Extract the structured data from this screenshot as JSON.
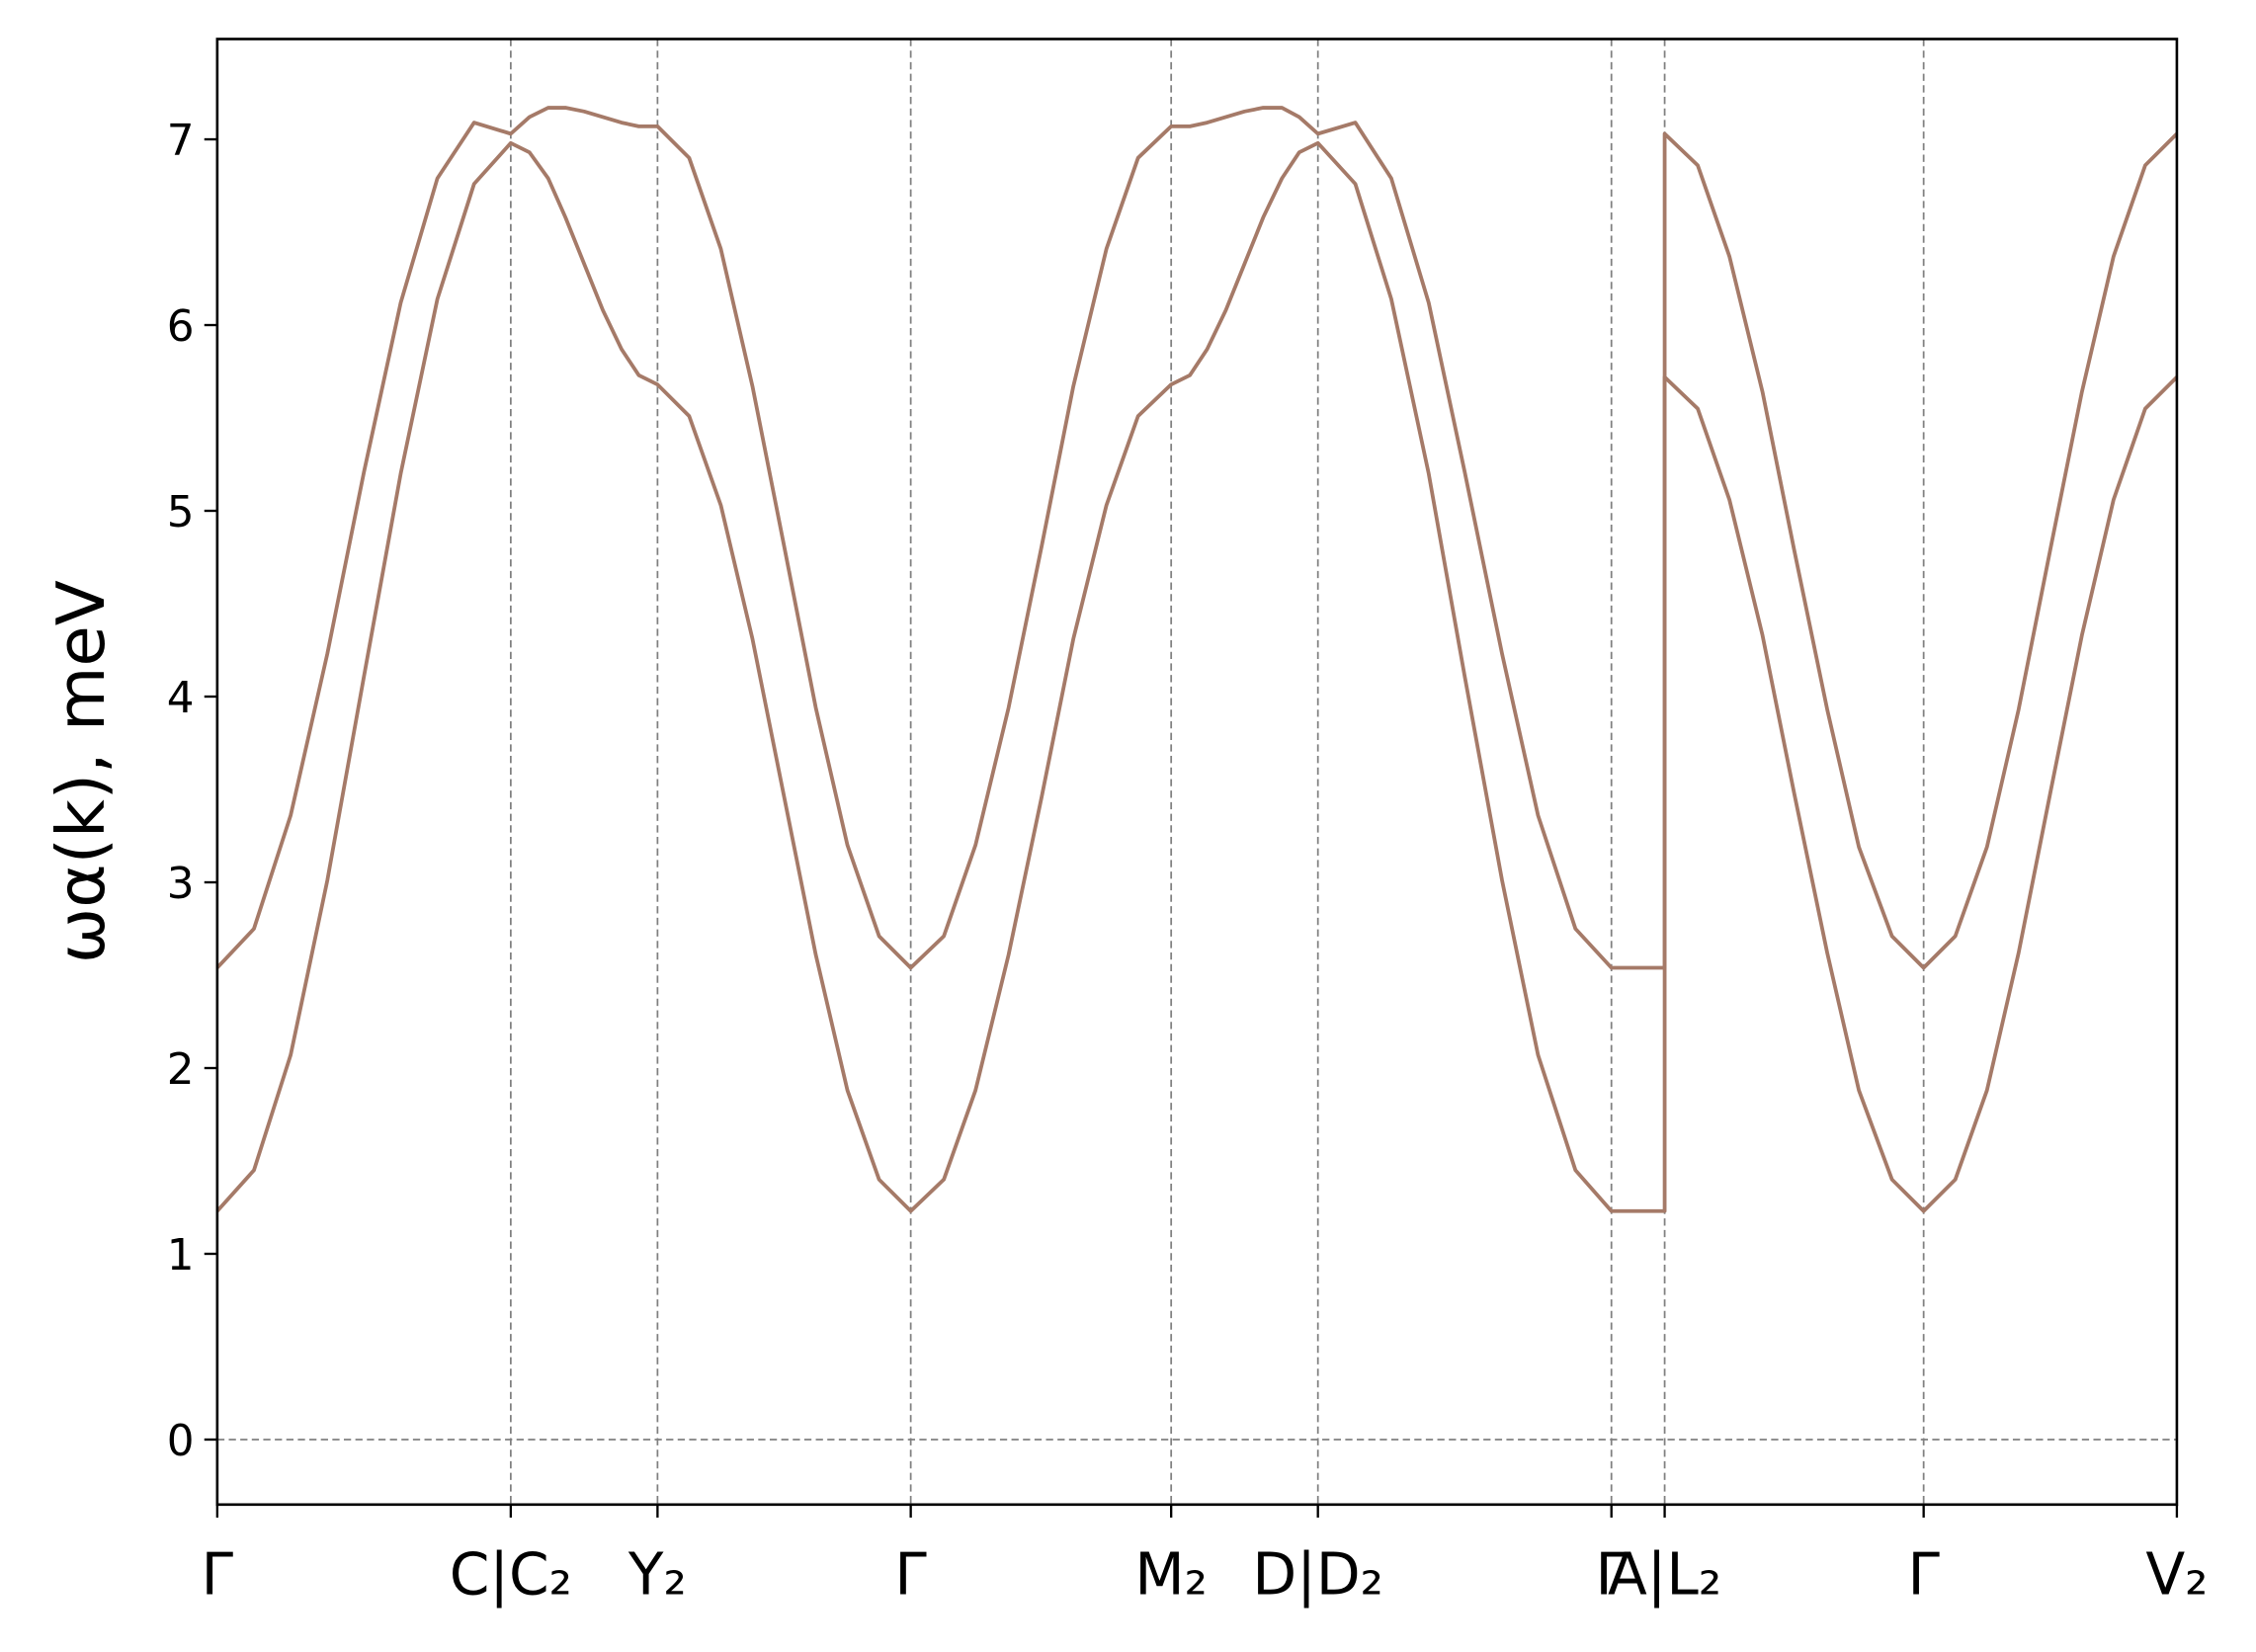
{
  "chart_data": {
    "type": "line",
    "ylabel": "ωα(k), meV",
    "x": [
      0,
      0.255,
      0.51,
      0.765,
      1.02,
      1.275,
      1.53,
      1.785,
      2.04,
      2.17,
      2.3,
      2.42,
      2.55,
      2.68,
      2.81,
      2.93,
      3.06,
      3.28,
      3.5,
      3.72,
      3.94,
      4.16,
      4.38,
      4.6,
      4.82,
      5.05,
      5.27,
      5.5,
      5.73,
      5.95,
      6.18,
      6.4,
      6.63,
      6.76,
      6.88,
      7.01,
      7.14,
      7.27,
      7.4,
      7.52,
      7.65,
      7.91,
      8.16,
      8.42,
      8.67,
      8.93,
      9.18,
      9.44,
      9.69,
      10.06,
      10.06,
      10.29,
      10.51,
      10.74,
      10.96,
      11.19,
      11.41,
      11.64,
      11.86,
      12.08,
      12.3,
      12.52,
      12.74,
      12.96,
      13.18,
      13.4,
      13.62
    ],
    "series": [
      {
        "color": "#a57a68",
        "values": [
          2.54,
          2.75,
          3.36,
          4.23,
          5.21,
          6.12,
          6.79,
          7.09,
          7.03,
          7.12,
          7.17,
          7.17,
          7.15,
          7.12,
          7.09,
          7.07,
          7.07,
          6.9,
          6.41,
          5.67,
          4.81,
          3.94,
          3.2,
          2.71,
          2.54,
          2.71,
          3.2,
          3.94,
          4.81,
          5.67,
          6.41,
          6.9,
          7.07,
          7.07,
          7.09,
          7.12,
          7.15,
          7.17,
          7.17,
          7.12,
          7.03,
          7.09,
          6.79,
          6.12,
          5.21,
          4.23,
          3.36,
          2.75,
          2.54,
          2.54,
          7.03,
          6.86,
          6.37,
          5.64,
          4.79,
          3.93,
          3.19,
          2.71,
          2.54,
          2.71,
          3.19,
          3.93,
          4.79,
          5.64,
          6.37,
          6.86,
          7.03
        ]
      },
      {
        "color": "#a57a68",
        "values": [
          1.23,
          1.45,
          2.07,
          3.01,
          4.11,
          5.2,
          6.14,
          6.76,
          6.98,
          6.93,
          6.79,
          6.58,
          6.33,
          6.08,
          5.87,
          5.73,
          5.68,
          5.51,
          5.03,
          4.31,
          3.46,
          2.61,
          1.88,
          1.4,
          1.23,
          1.4,
          1.88,
          2.61,
          3.46,
          4.31,
          5.03,
          5.51,
          5.68,
          5.73,
          5.87,
          6.08,
          6.33,
          6.58,
          6.79,
          6.93,
          6.98,
          6.76,
          6.14,
          5.2,
          4.11,
          3.01,
          2.07,
          1.45,
          1.23,
          1.23,
          5.72,
          5.55,
          5.06,
          4.33,
          3.48,
          2.62,
          1.88,
          1.4,
          1.23,
          1.4,
          1.88,
          2.62,
          3.48,
          4.33,
          5.06,
          5.55,
          5.72
        ]
      }
    ],
    "xlim": [
      0,
      13.62
    ],
    "xticks": [
      {
        "value": 0,
        "label": "Γ"
      },
      {
        "value": 2.04,
        "label": "C|C₂"
      },
      {
        "value": 3.06,
        "label": "Y₂"
      },
      {
        "value": 4.82,
        "label": "Γ"
      },
      {
        "value": 6.63,
        "label": "M₂"
      },
      {
        "value": 7.65,
        "label": "D|D₂"
      },
      {
        "value": 9.69,
        "label": "Γ"
      },
      {
        "value": 10.06,
        "label": "A|L₂"
      },
      {
        "value": 11.86,
        "label": "Γ"
      },
      {
        "value": 13.62,
        "label": "V₂"
      }
    ],
    "ylim": [
      -0.35,
      7.54
    ],
    "yticks": [
      0,
      1,
      2,
      3,
      4,
      5,
      6,
      7
    ],
    "grid": true,
    "zero_line": true
  }
}
